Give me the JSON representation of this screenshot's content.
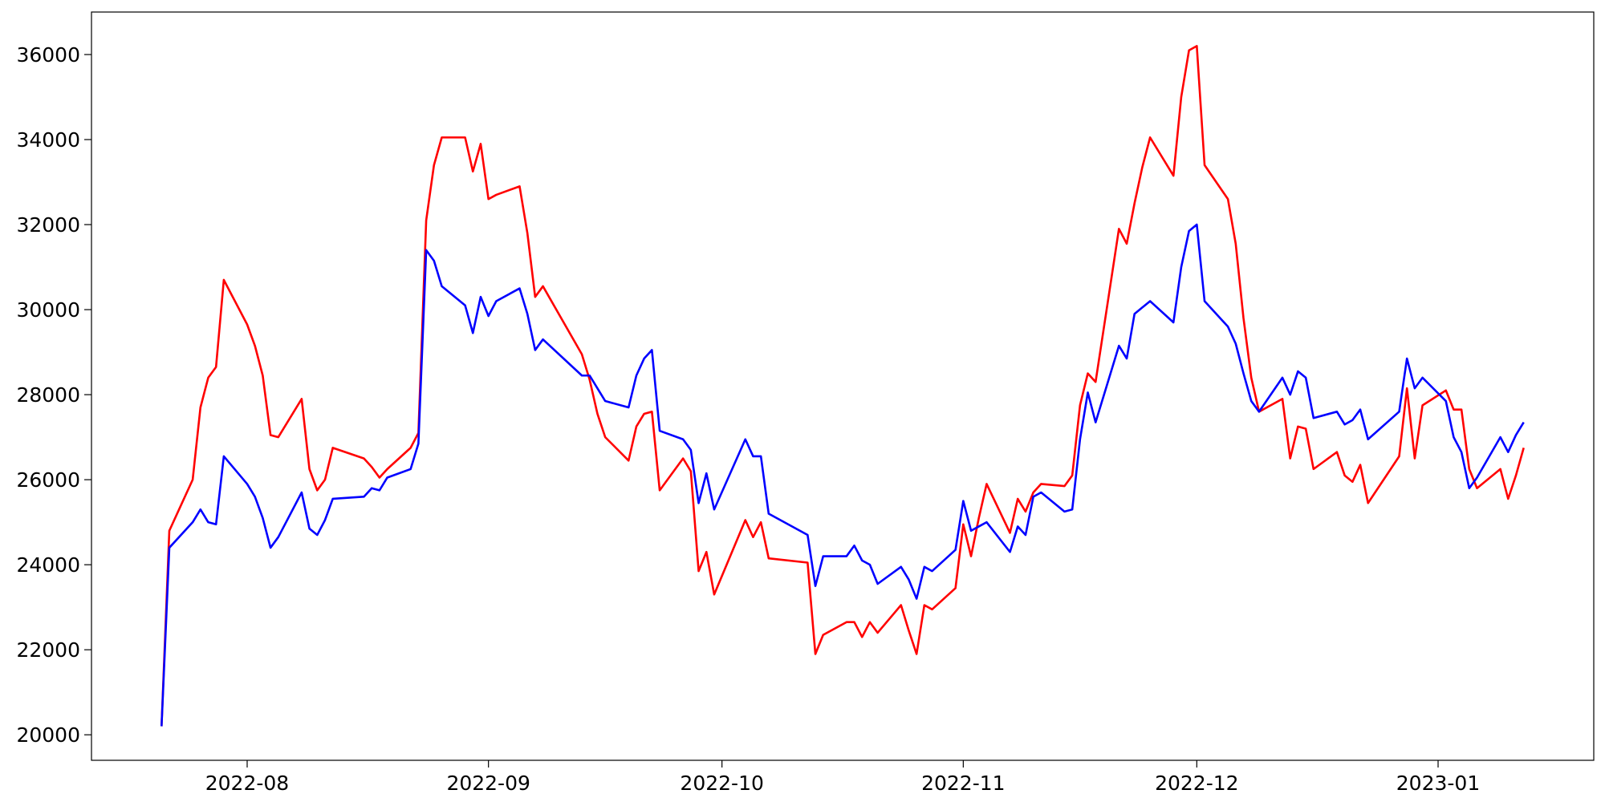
{
  "chart_data": {
    "type": "line",
    "x": [
      "2022-07-21",
      "2022-07-22",
      "2022-07-25",
      "2022-07-26",
      "2022-07-27",
      "2022-07-28",
      "2022-07-29",
      "2022-08-01",
      "2022-08-02",
      "2022-08-03",
      "2022-08-04",
      "2022-08-05",
      "2022-08-08",
      "2022-08-09",
      "2022-08-10",
      "2022-08-11",
      "2022-08-12",
      "2022-08-16",
      "2022-08-17",
      "2022-08-18",
      "2022-08-19",
      "2022-08-22",
      "2022-08-23",
      "2022-08-24",
      "2022-08-25",
      "2022-08-26",
      "2022-08-29",
      "2022-08-30",
      "2022-08-31",
      "2022-09-01",
      "2022-09-02",
      "2022-09-05",
      "2022-09-06",
      "2022-09-07",
      "2022-09-08",
      "2022-09-13",
      "2022-09-14",
      "2022-09-15",
      "2022-09-16",
      "2022-09-19",
      "2022-09-20",
      "2022-09-21",
      "2022-09-22",
      "2022-09-23",
      "2022-09-26",
      "2022-09-27",
      "2022-09-28",
      "2022-09-29",
      "2022-09-30",
      "2022-10-04",
      "2022-10-05",
      "2022-10-06",
      "2022-10-07",
      "2022-10-12",
      "2022-10-13",
      "2022-10-14",
      "2022-10-17",
      "2022-10-18",
      "2022-10-19",
      "2022-10-20",
      "2022-10-21",
      "2022-10-24",
      "2022-10-25",
      "2022-10-26",
      "2022-10-27",
      "2022-10-28",
      "2022-10-31",
      "2022-11-01",
      "2022-11-02",
      "2022-11-03",
      "2022-11-04",
      "2022-11-07",
      "2022-11-08",
      "2022-11-09",
      "2022-11-10",
      "2022-11-11",
      "2022-11-14",
      "2022-11-15",
      "2022-11-16",
      "2022-11-17",
      "2022-11-18",
      "2022-11-21",
      "2022-11-22",
      "2022-11-23",
      "2022-11-24",
      "2022-11-25",
      "2022-11-28",
      "2022-11-29",
      "2022-11-30",
      "2022-12-01",
      "2022-12-02",
      "2022-12-05",
      "2022-12-06",
      "2022-12-07",
      "2022-12-08",
      "2022-12-09",
      "2022-12-12",
      "2022-12-13",
      "2022-12-14",
      "2022-12-15",
      "2022-12-16",
      "2022-12-19",
      "2022-12-20",
      "2022-12-21",
      "2022-12-22",
      "2022-12-23",
      "2022-12-27",
      "2022-12-28",
      "2022-12-29",
      "2022-12-30",
      "2023-01-02",
      "2023-01-03",
      "2023-01-04",
      "2023-01-05",
      "2023-01-06",
      "2023-01-09",
      "2023-01-10",
      "2023-01-11",
      "2023-01-12"
    ],
    "series": [
      {
        "color": "red",
        "values": [
          20200,
          24800,
          26000,
          27700,
          28400,
          28650,
          30700,
          29650,
          29150,
          28450,
          27050,
          27000,
          27900,
          26250,
          25750,
          26000,
          26750,
          26500,
          26300,
          26050,
          26250,
          26750,
          27100,
          32100,
          33400,
          34050,
          34050,
          33250,
          33900,
          32600,
          32700,
          32900,
          31800,
          30300,
          30550,
          28950,
          28350,
          27550,
          27000,
          26450,
          27250,
          27550,
          27600,
          25750,
          26500,
          26200,
          23850,
          24300,
          23300,
          25050,
          24650,
          25000,
          24150,
          24050,
          21900,
          22350,
          22650,
          22650,
          22300,
          22650,
          22400,
          23050,
          22450,
          21900,
          23050,
          22950,
          23450,
          24950,
          24200,
          25100,
          25900,
          24750,
          25550,
          25250,
          25700,
          25900,
          25850,
          26100,
          27750,
          28500,
          28300,
          31900,
          31550,
          32500,
          33350,
          34050,
          33150,
          35000,
          36100,
          36200,
          33400,
          32600,
          31550,
          29800,
          28400,
          27600,
          27900,
          26500,
          27250,
          27200,
          26250,
          26650,
          26100,
          25950,
          26350,
          25450,
          26550,
          28150,
          26500,
          27750,
          28100,
          27650,
          27650,
          26250,
          25800,
          26250,
          25550,
          26100,
          26750
        ]
      },
      {
        "color": "blue",
        "values": [
          20200,
          24400,
          25000,
          25300,
          25000,
          24950,
          26550,
          25900,
          25600,
          25100,
          24400,
          24650,
          25700,
          24850,
          24700,
          25050,
          25550,
          25600,
          25800,
          25750,
          26050,
          26250,
          26850,
          31400,
          31150,
          30550,
          30100,
          29450,
          30300,
          29850,
          30200,
          30500,
          29900,
          29050,
          29300,
          28450,
          28450,
          28150,
          27850,
          27700,
          28450,
          28850,
          29050,
          27150,
          26950,
          26700,
          25450,
          26150,
          25300,
          26950,
          26550,
          26550,
          25200,
          24700,
          23500,
          24200,
          24200,
          24450,
          24100,
          24000,
          23550,
          23950,
          23650,
          23200,
          23950,
          23850,
          24350,
          25500,
          24800,
          24900,
          25000,
          24300,
          24900,
          24700,
          25600,
          25700,
          25250,
          25300,
          26950,
          28050,
          27350,
          29150,
          28850,
          29900,
          30050,
          30200,
          29700,
          31000,
          31850,
          32000,
          30200,
          29600,
          29200,
          28500,
          27850,
          27600,
          28400,
          28000,
          28550,
          28400,
          27450,
          27600,
          27300,
          27400,
          27650,
          26950,
          27600,
          28850,
          28150,
          28400,
          27850,
          27000,
          26650,
          25800,
          26050,
          27000,
          26650,
          27050,
          27350
        ]
      }
    ],
    "xlim": [
      "2022-07-12",
      "2023-01-21"
    ],
    "xticks": [
      {
        "value": "2022-08-01",
        "label": "2022-08"
      },
      {
        "value": "2022-09-01",
        "label": "2022-09"
      },
      {
        "value": "2022-10-01",
        "label": "2022-10"
      },
      {
        "value": "2022-11-01",
        "label": "2022-11"
      },
      {
        "value": "2022-12-01",
        "label": "2022-12"
      },
      {
        "value": "2023-01-01",
        "label": "2023-01"
      }
    ],
    "ylim": [
      19400,
      37000
    ],
    "yticks": [
      20000,
      22000,
      24000,
      26000,
      28000,
      30000,
      32000,
      34000,
      36000
    ],
    "grid": false
  }
}
